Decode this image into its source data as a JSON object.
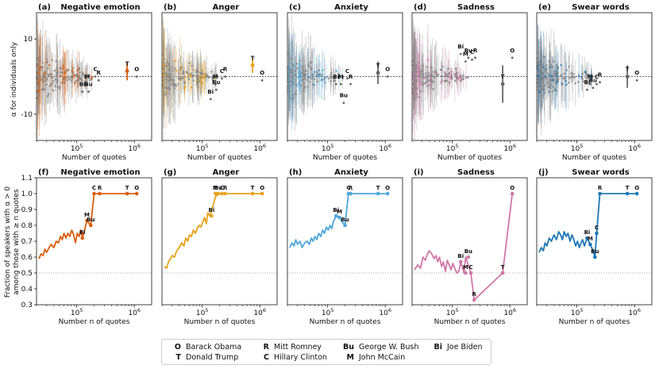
{
  "figure": {
    "top_row": {
      "ylabel": "α for individuals only",
      "xlabel": "Number of quotes"
    },
    "bottom_row": {
      "ylabel_line1": "Fraction of speakers with α > 0",
      "ylabel_line2": "among those with ≥ n quotes",
      "xlabel": "Number n of quotes"
    }
  },
  "legend": {
    "entries": [
      {
        "abbr": "O",
        "name": "Barack Obama"
      },
      {
        "abbr": "T",
        "name": "Donald Trump"
      },
      {
        "abbr": "R",
        "name": "Mitt Romney"
      },
      {
        "abbr": "C",
        "name": "Hillary Clinton"
      },
      {
        "abbr": "Bu",
        "name": "George W. Bush"
      },
      {
        "abbr": "M",
        "name": "John McCain"
      },
      {
        "abbr": "Bi",
        "name": "Joe Biden"
      }
    ]
  },
  "chart_data": [
    {
      "type": "scatter",
      "panel": "(a)",
      "title": "Negative emotion",
      "color": "#d95f0e",
      "x_scale": "log",
      "xlim": [
        20000,
        2000000
      ],
      "ylim": [
        -17,
        17
      ],
      "yticks": [
        -10,
        10
      ],
      "xticks": [
        "10^5",
        "10^6"
      ],
      "reference_line_y": 0,
      "ylabel": "α for individuals only",
      "xlabel": "Number of quotes",
      "labeled_points": [
        {
          "label": "O",
          "x": 1100000,
          "y": 0,
          "err": 0
        },
        {
          "label": "T",
          "x": 750000,
          "y": 1.5,
          "err": 2.5
        },
        {
          "label": "R",
          "x": 240000,
          "y": -1,
          "err": 0
        },
        {
          "label": "C",
          "x": 210000,
          "y": 0,
          "err": 0
        },
        {
          "label": "M",
          "x": 150000,
          "y": -2,
          "err": 0
        },
        {
          "label": "Bu",
          "x": 160000,
          "y": -4,
          "err": 0
        },
        {
          "label": "Bi",
          "x": 125000,
          "y": -4,
          "err": 0
        }
      ]
    },
    {
      "type": "scatter",
      "panel": "(b)",
      "title": "Anger",
      "color": "#e6a11a",
      "x_scale": "log",
      "xlim": [
        20000,
        2000000
      ],
      "ylim": [
        -17,
        17
      ],
      "xticks": [
        "10^5",
        "10^6"
      ],
      "reference_line_y": 0,
      "xlabel": "Number of quotes",
      "labeled_points": [
        {
          "label": "O",
          "x": 1100000,
          "y": -1,
          "err": 0
        },
        {
          "label": "T",
          "x": 750000,
          "y": 3,
          "err": 2
        },
        {
          "label": "R",
          "x": 250000,
          "y": 0,
          "err": 0
        },
        {
          "label": "C",
          "x": 220000,
          "y": -0.5,
          "err": 0
        },
        {
          "label": "M",
          "x": 170000,
          "y": -2,
          "err": 0
        },
        {
          "label": "Bu",
          "x": 175000,
          "y": -3.5,
          "err": 0
        },
        {
          "label": "Bi",
          "x": 140000,
          "y": -6,
          "err": 0
        }
      ]
    },
    {
      "type": "scatter",
      "panel": "(c)",
      "title": "Anxiety",
      "color": "#4da6d9",
      "x_scale": "log",
      "xlim": [
        20000,
        2000000
      ],
      "ylim": [
        -17,
        17
      ],
      "xticks": [
        "10^5",
        "10^6"
      ],
      "reference_line_y": 0,
      "xlabel": "Number of quotes",
      "labeled_points": [
        {
          "label": "O",
          "x": 1100000,
          "y": 0,
          "err": 0
        },
        {
          "label": "T",
          "x": 750000,
          "y": 1,
          "err": 3
        },
        {
          "label": "R",
          "x": 250000,
          "y": -2,
          "err": 0
        },
        {
          "label": "C",
          "x": 220000,
          "y": -0.5,
          "err": 0
        },
        {
          "label": "M",
          "x": 170000,
          "y": -2,
          "err": 0
        },
        {
          "label": "Bu",
          "x": 190000,
          "y": -7,
          "err": 0
        },
        {
          "label": "Bi",
          "x": 140000,
          "y": -2,
          "err": 0
        }
      ]
    },
    {
      "type": "scatter",
      "panel": "(d)",
      "title": "Sadness",
      "color": "#cf77a8",
      "x_scale": "log",
      "xlim": [
        20000,
        2000000
      ],
      "ylim": [
        -17,
        17
      ],
      "xticks": [
        "10^5",
        "10^6"
      ],
      "reference_line_y": 0,
      "xlabel": "Number of quotes",
      "labeled_points": [
        {
          "label": "O",
          "x": 1100000,
          "y": 5,
          "err": 0
        },
        {
          "label": "T",
          "x": 750000,
          "y": -2,
          "err": 5
        },
        {
          "label": "R",
          "x": 250000,
          "y": 5,
          "err": 0
        },
        {
          "label": "C",
          "x": 220000,
          "y": 4.5,
          "err": 0
        },
        {
          "label": "M",
          "x": 170000,
          "y": 4,
          "err": 0
        },
        {
          "label": "Bu",
          "x": 190000,
          "y": 5,
          "err": 0
        },
        {
          "label": "Bi",
          "x": 140000,
          "y": 6,
          "err": 0
        }
      ]
    },
    {
      "type": "scatter",
      "panel": "(e)",
      "title": "Swear words",
      "color": "#1f77b4",
      "x_scale": "log",
      "xlim": [
        20000,
        2000000
      ],
      "ylim": [
        -17,
        17
      ],
      "xticks": [
        "10^5",
        "10^6"
      ],
      "reference_line_y": 0,
      "xlabel": "Number of quotes",
      "labeled_points": [
        {
          "label": "O",
          "x": 1100000,
          "y": -1,
          "err": 0
        },
        {
          "label": "T",
          "x": 750000,
          "y": 0,
          "err": 3
        },
        {
          "label": "R",
          "x": 250000,
          "y": -1.5,
          "err": 0
        },
        {
          "label": "C",
          "x": 220000,
          "y": -2,
          "err": 0
        },
        {
          "label": "M",
          "x": 170000,
          "y": -2,
          "err": 0
        },
        {
          "label": "Bu",
          "x": 190000,
          "y": -3,
          "err": 0
        },
        {
          "label": "Bi",
          "x": 150000,
          "y": -3.5,
          "err": 0
        }
      ]
    },
    {
      "type": "line",
      "panel": "(f)",
      "title": "Negative emotion",
      "color": "#d95f0e",
      "x_scale": "log",
      "xlim": [
        20000,
        2000000
      ],
      "ylim": [
        0.3,
        1.1
      ],
      "yticks": [
        0.3,
        0.4,
        0.5,
        0.6,
        0.7,
        0.8,
        0.9,
        1.0,
        1.1
      ],
      "xticks": [
        "10^5",
        "10^6"
      ],
      "reference_line_y": 0.5,
      "xlabel": "Number n of quotes",
      "x": [
        22000,
        24000,
        26000,
        28000,
        30000,
        33000,
        36000,
        40000,
        44000,
        48000,
        52000,
        56000,
        60000,
        65000,
        70000,
        76000,
        82000,
        88000,
        95000,
        102000,
        110000,
        118000,
        125000,
        135000,
        150000,
        175000,
        200000,
        250000,
        750000,
        1100000
      ],
      "y": [
        0.59,
        0.62,
        0.61,
        0.65,
        0.63,
        0.66,
        0.68,
        0.66,
        0.7,
        0.69,
        0.73,
        0.71,
        0.75,
        0.72,
        0.75,
        0.73,
        0.77,
        0.74,
        0.69,
        0.75,
        0.73,
        0.77,
        0.72,
        0.76,
        0.83,
        0.8,
        1.0,
        1.0,
        1.0,
        1.0
      ],
      "labeled_points": [
        {
          "label": "Bi",
          "x": 125000,
          "y": 0.72
        },
        {
          "label": "M",
          "x": 150000,
          "y": 0.83
        },
        {
          "label": "Bu",
          "x": 175000,
          "y": 0.8
        },
        {
          "label": "C",
          "x": 200000,
          "y": 1.0
        },
        {
          "label": "R",
          "x": 250000,
          "y": 1.0
        },
        {
          "label": "T",
          "x": 750000,
          "y": 1.0
        },
        {
          "label": "O",
          "x": 1100000,
          "y": 1.0
        }
      ]
    },
    {
      "type": "line",
      "panel": "(g)",
      "title": "Anger",
      "color": "#e6a11a",
      "x_scale": "log",
      "xlim": [
        20000,
        2000000
      ],
      "ylim": [
        0.3,
        1.1
      ],
      "xticks": [
        "10^5",
        "10^6"
      ],
      "reference_line_y": 0.5,
      "xlabel": "Number n of quotes",
      "x": [
        22000,
        24000,
        26000,
        28000,
        30000,
        33000,
        36000,
        40000,
        44000,
        48000,
        52000,
        56000,
        60000,
        65000,
        70000,
        76000,
        82000,
        88000,
        95000,
        102000,
        110000,
        118000,
        125000,
        135000,
        145000,
        170000,
        190000,
        220000,
        250000,
        750000,
        1100000
      ],
      "y": [
        0.54,
        0.53,
        0.57,
        0.59,
        0.61,
        0.6,
        0.64,
        0.66,
        0.69,
        0.67,
        0.72,
        0.7,
        0.74,
        0.73,
        0.77,
        0.75,
        0.78,
        0.8,
        0.79,
        0.82,
        0.85,
        0.81,
        0.88,
        0.86,
        0.89,
        0.98,
        1.0,
        1.0,
        1.0,
        1.0,
        1.0
      ],
      "labeled_points": [
        {
          "label": "Bi",
          "x": 145000,
          "y": 0.86
        },
        {
          "label": "M",
          "x": 170000,
          "y": 1.0
        },
        {
          "label": "Bu",
          "x": 190000,
          "y": 1.0
        },
        {
          "label": "C",
          "x": 220000,
          "y": 1.0
        },
        {
          "label": "R",
          "x": 250000,
          "y": 1.0
        },
        {
          "label": "T",
          "x": 750000,
          "y": 1.0
        },
        {
          "label": "O",
          "x": 1100000,
          "y": 1.0
        }
      ]
    },
    {
      "type": "line",
      "panel": "(h)",
      "title": "Anxiety",
      "color": "#4da6d9",
      "x_scale": "log",
      "xlim": [
        20000,
        2000000
      ],
      "ylim": [
        0.3,
        1.1
      ],
      "xticks": [
        "10^5",
        "10^6"
      ],
      "reference_line_y": 0.5,
      "xlabel": "Number n of quotes",
      "x": [
        22000,
        24000,
        26000,
        28000,
        30000,
        33000,
        36000,
        40000,
        44000,
        48000,
        52000,
        56000,
        60000,
        65000,
        70000,
        76000,
        82000,
        88000,
        95000,
        102000,
        110000,
        118000,
        125000,
        140000,
        160000,
        180000,
        200000,
        230000,
        250000,
        750000,
        1100000
      ],
      "y": [
        0.66,
        0.69,
        0.67,
        0.71,
        0.68,
        0.7,
        0.66,
        0.69,
        0.7,
        0.68,
        0.72,
        0.7,
        0.73,
        0.71,
        0.75,
        0.73,
        0.77,
        0.75,
        0.79,
        0.77,
        0.8,
        0.78,
        0.82,
        0.86,
        0.85,
        0.82,
        0.8,
        1.0,
        1.0,
        1.0,
        1.0
      ],
      "labeled_points": [
        {
          "label": "Bi",
          "x": 140000,
          "y": 0.86
        },
        {
          "label": "M",
          "x": 160000,
          "y": 0.85
        },
        {
          "label": "Bu",
          "x": 200000,
          "y": 0.8
        },
        {
          "label": "C",
          "x": 230000,
          "y": 1.0
        },
        {
          "label": "R",
          "x": 250000,
          "y": 1.0
        },
        {
          "label": "T",
          "x": 750000,
          "y": 1.0
        },
        {
          "label": "O",
          "x": 1100000,
          "y": 1.0
        }
      ]
    },
    {
      "type": "line",
      "panel": "(i)",
      "title": "Sadness",
      "color": "#cf77a8",
      "x_scale": "log",
      "xlim": [
        20000,
        2000000
      ],
      "ylim": [
        0.3,
        1.1
      ],
      "xticks": [
        "10^5",
        "10^6"
      ],
      "reference_line_y": 0.5,
      "xlabel": "Number n of quotes",
      "x": [
        22000,
        25000,
        28000,
        31000,
        34000,
        37000,
        40000,
        44000,
        48000,
        52000,
        56000,
        60000,
        65000,
        70000,
        76000,
        82000,
        88000,
        95000,
        102000,
        110000,
        120000,
        130000,
        140000,
        160000,
        170000,
        190000,
        210000,
        240000,
        750000,
        1100000
      ],
      "y": [
        0.52,
        0.55,
        0.53,
        0.6,
        0.58,
        0.62,
        0.64,
        0.62,
        0.59,
        0.61,
        0.57,
        0.6,
        0.54,
        0.57,
        0.51,
        0.58,
        0.55,
        0.52,
        0.56,
        0.53,
        0.5,
        0.51,
        0.57,
        0.5,
        0.6,
        0.55,
        0.5,
        0.33,
        0.5,
        1.0
      ],
      "labeled_points": [
        {
          "label": "Bi",
          "x": 140000,
          "y": 0.57
        },
        {
          "label": "M",
          "x": 170000,
          "y": 0.5
        },
        {
          "label": "Bu",
          "x": 190000,
          "y": 0.6
        },
        {
          "label": "C",
          "x": 210000,
          "y": 0.5
        },
        {
          "label": "R",
          "x": 240000,
          "y": 0.33
        },
        {
          "label": "T",
          "x": 750000,
          "y": 0.5
        },
        {
          "label": "O",
          "x": 1100000,
          "y": 1.0
        }
      ]
    },
    {
      "type": "line",
      "panel": "(j)",
      "title": "Swear words",
      "color": "#1f77b4",
      "x_scale": "log",
      "xlim": [
        20000,
        2000000
      ],
      "ylim": [
        0.3,
        1.1
      ],
      "xticks": [
        "10^5",
        "10^6"
      ],
      "reference_line_y": 0.5,
      "xlabel": "Number n of quotes",
      "x": [
        22000,
        24000,
        26000,
        28000,
        30000,
        33000,
        36000,
        40000,
        44000,
        48000,
        52000,
        56000,
        60000,
        65000,
        70000,
        76000,
        82000,
        88000,
        95000,
        102000,
        110000,
        118000,
        125000,
        135000,
        150000,
        170000,
        190000,
        205000,
        220000,
        250000,
        750000,
        1100000
      ],
      "y": [
        0.63,
        0.66,
        0.64,
        0.69,
        0.67,
        0.72,
        0.7,
        0.74,
        0.71,
        0.76,
        0.74,
        0.71,
        0.76,
        0.73,
        0.75,
        0.7,
        0.74,
        0.71,
        0.67,
        0.7,
        0.66,
        0.69,
        0.71,
        0.67,
        0.72,
        0.68,
        0.64,
        0.6,
        0.75,
        1.0,
        1.0,
        1.0
      ],
      "labeled_points": [
        {
          "label": "Bi",
          "x": 150000,
          "y": 0.72
        },
        {
          "label": "M",
          "x": 170000,
          "y": 0.68
        },
        {
          "label": "Bu",
          "x": 205000,
          "y": 0.6
        },
        {
          "label": "C",
          "x": 220000,
          "y": 0.75
        },
        {
          "label": "R",
          "x": 250000,
          "y": 1.0
        },
        {
          "label": "T",
          "x": 750000,
          "y": 1.0
        },
        {
          "label": "O",
          "x": 1100000,
          "y": 1.0
        }
      ]
    }
  ]
}
